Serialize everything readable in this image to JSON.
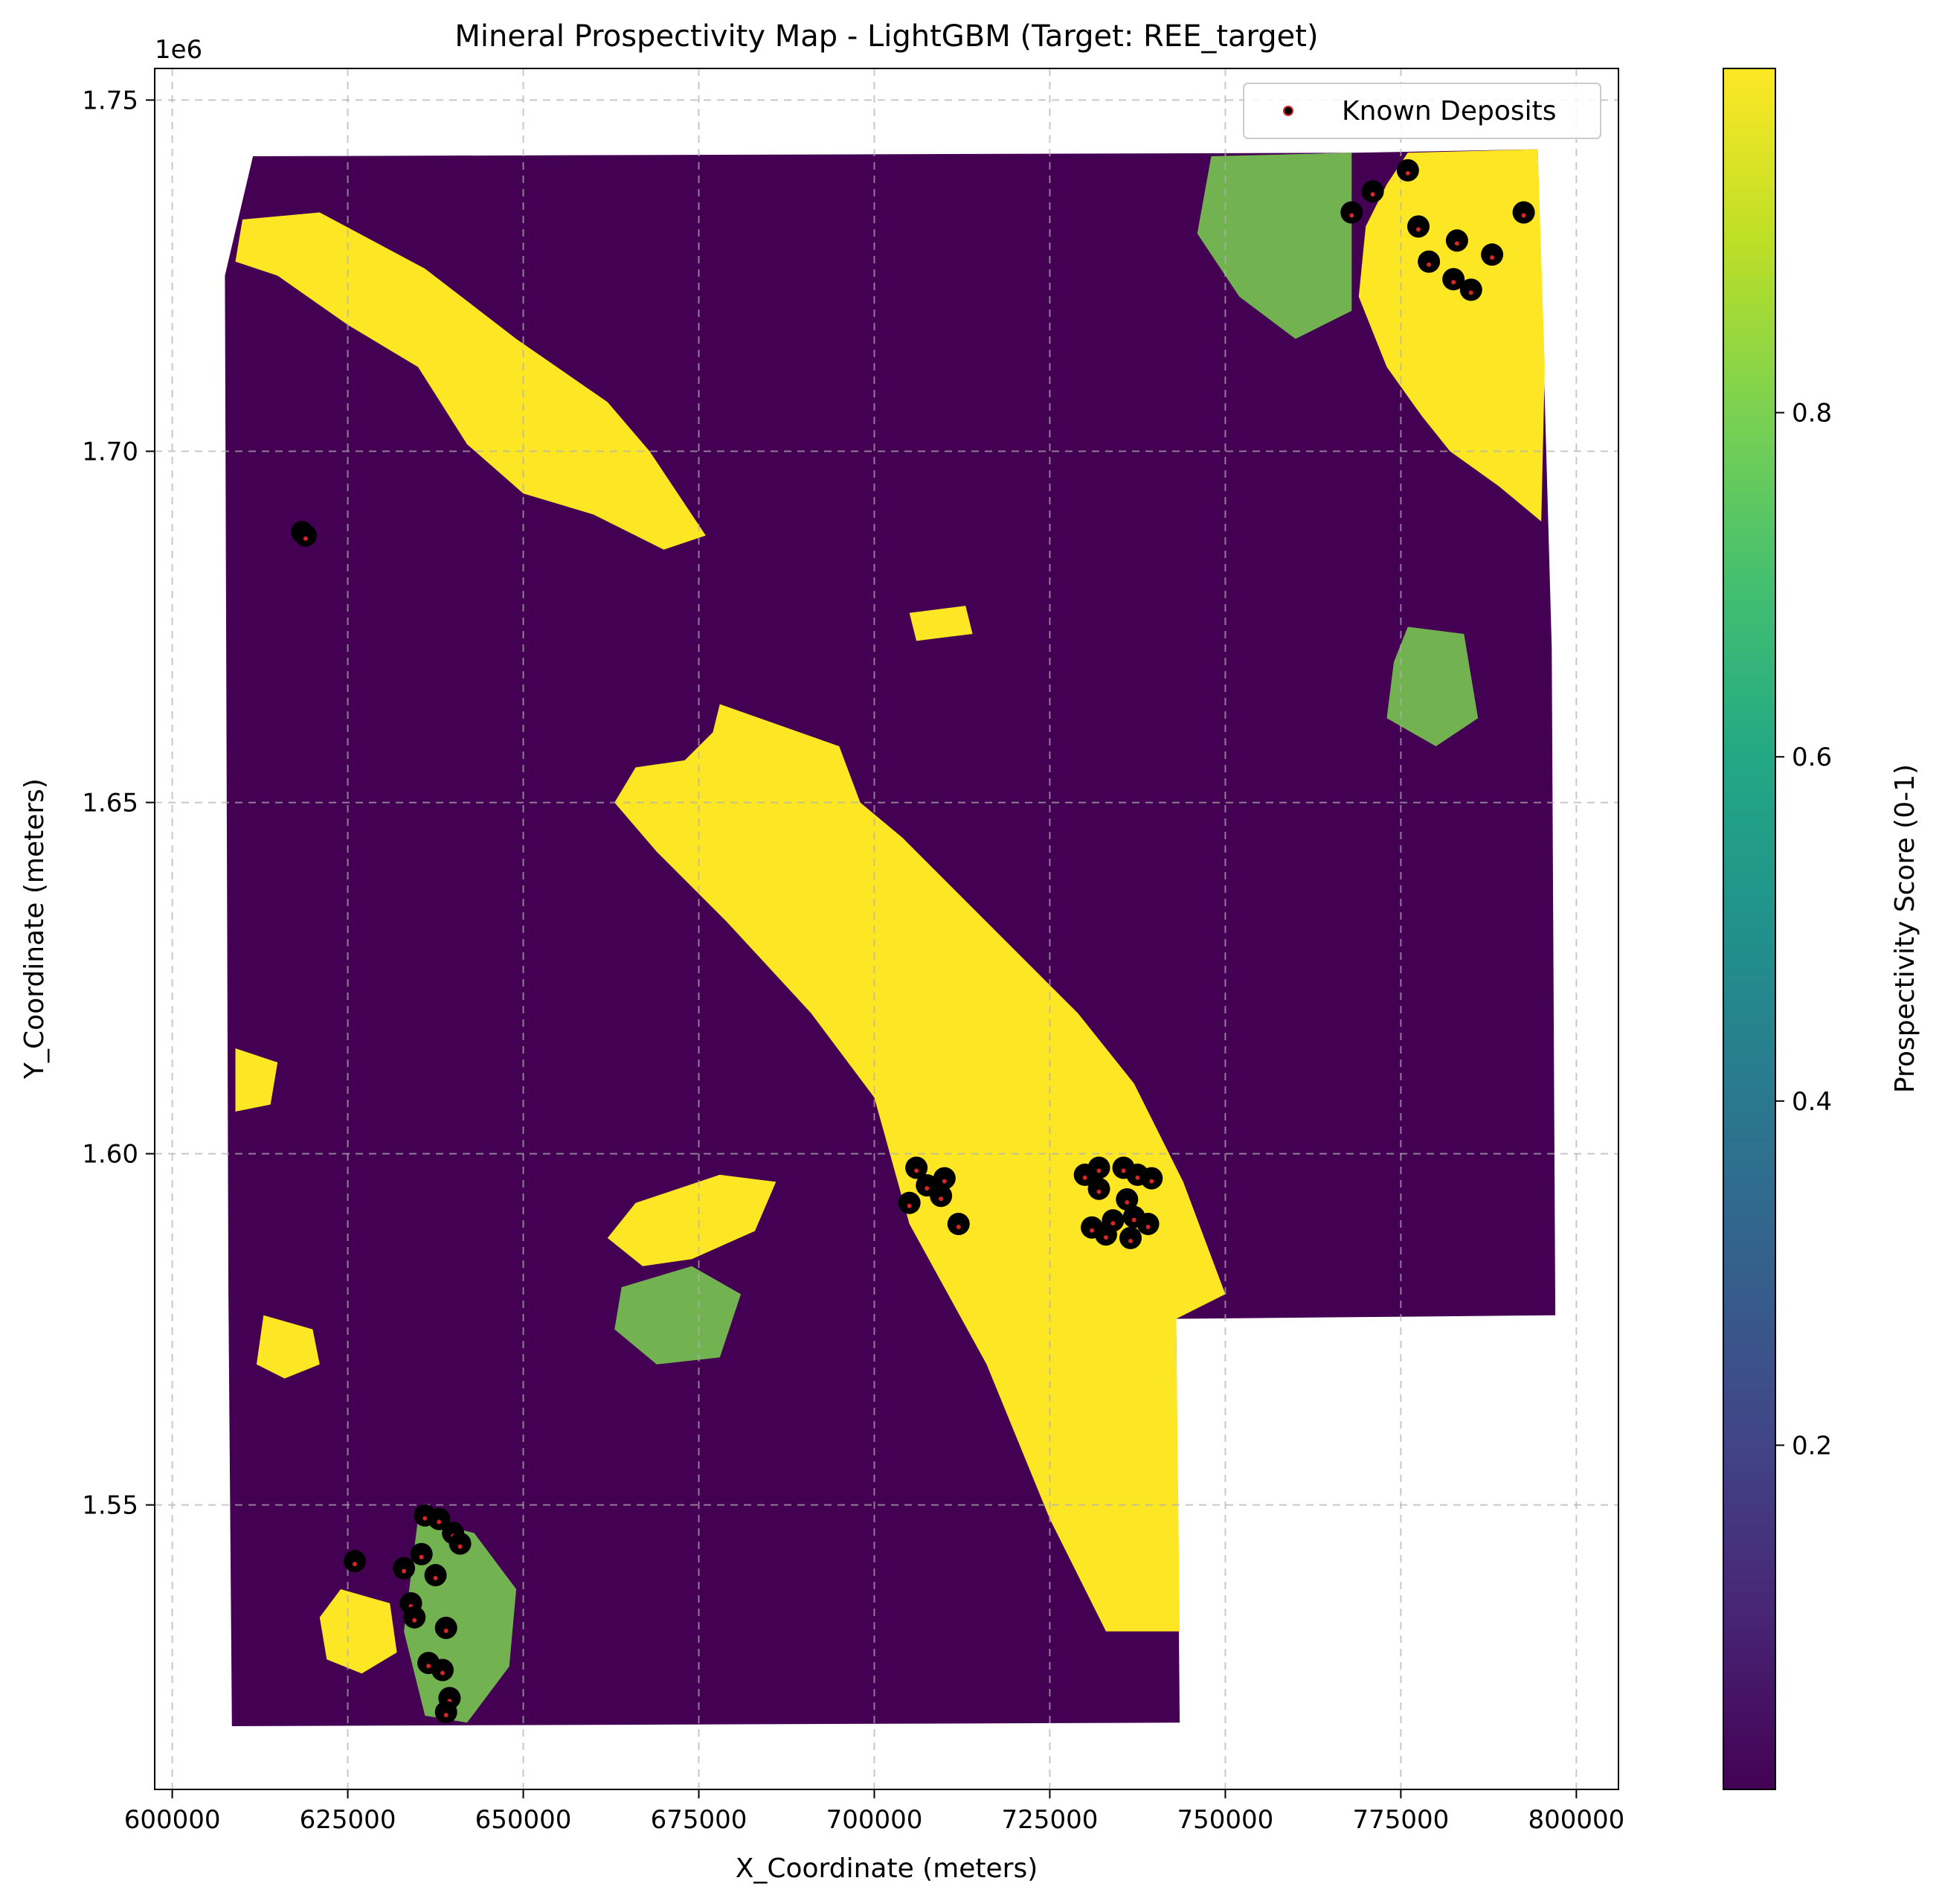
{
  "chart_data": {
    "type": "heatmap",
    "title": "Mineral Prospectivity Map - LightGBM (Target: REE_target)",
    "xlabel": "X_Coordinate (meters)",
    "ylabel": "Y_Coordinate (meters)",
    "y_offset_label": "1e6",
    "xlim": [
      597500,
      806000
    ],
    "ylim": [
      1509500,
      1754500
    ],
    "grid": true,
    "x_ticks": [
      {
        "value": 600000,
        "label": "600000"
      },
      {
        "value": 625000,
        "label": "625000"
      },
      {
        "value": 650000,
        "label": "650000"
      },
      {
        "value": 675000,
        "label": "675000"
      },
      {
        "value": 700000,
        "label": "700000"
      },
      {
        "value": 725000,
        "label": "725000"
      },
      {
        "value": 750000,
        "label": "750000"
      },
      {
        "value": 775000,
        "label": "775000"
      },
      {
        "value": 800000,
        "label": "800000"
      }
    ],
    "y_ticks": [
      {
        "value": 1550000,
        "label": "1.55"
      },
      {
        "value": 1600000,
        "label": "1.60"
      },
      {
        "value": 1650000,
        "label": "1.65"
      },
      {
        "value": 1700000,
        "label": "1.70"
      },
      {
        "value": 1750000,
        "label": "1.75"
      }
    ],
    "colorbar": {
      "label": "Prospectivity Score (0-1)",
      "range": [
        0.0,
        1.0
      ],
      "colormap": [
        "#440154",
        "#482475",
        "#414487",
        "#355f8d",
        "#2a788e",
        "#21918c",
        "#22a884",
        "#44bf70",
        "#7ad151",
        "#bddf26",
        "#fde725"
      ],
      "ticks": [
        {
          "value": 0.2,
          "label": "0.2"
        },
        {
          "value": 0.4,
          "label": "0.4"
        },
        {
          "value": 0.6,
          "label": "0.6"
        },
        {
          "value": 0.8,
          "label": "0.8"
        }
      ]
    },
    "colors": {
      "low": "#440154",
      "high": "#fde725",
      "mid": "#7ad151",
      "deposit": "#000000",
      "deposit_edge": "#d62728"
    },
    "legend": {
      "placement": "top-right",
      "entries": [
        "Known Deposits"
      ]
    },
    "study_area_boundary": [
      [
        611500,
        1742000
      ],
      [
        768500,
        1742500
      ],
      [
        794500,
        1743000
      ],
      [
        796500,
        1672000
      ],
      [
        797000,
        1577000
      ],
      [
        743000,
        1576500
      ],
      [
        743500,
        1519000
      ],
      [
        608500,
        1518500
      ],
      [
        608000,
        1580000
      ],
      [
        607500,
        1725000
      ]
    ],
    "high_zones": [
      {
        "score": 0.98,
        "polygon": [
          [
            610000,
            1733000
          ],
          [
            621000,
            1734000
          ],
          [
            636000,
            1726000
          ],
          [
            649000,
            1716000
          ],
          [
            662000,
            1707000
          ],
          [
            668000,
            1700000
          ],
          [
            676000,
            1688000
          ],
          [
            670000,
            1686000
          ],
          [
            660000,
            1691000
          ],
          [
            650000,
            1694000
          ],
          [
            642000,
            1701000
          ],
          [
            635000,
            1712000
          ],
          [
            625000,
            1718000
          ],
          [
            615000,
            1725000
          ],
          [
            609000,
            1727000
          ]
        ]
      },
      {
        "score": 0.98,
        "polygon": [
          [
            678000,
            1664000
          ],
          [
            695000,
            1658000
          ],
          [
            698000,
            1650000
          ],
          [
            704000,
            1645000
          ],
          [
            716000,
            1633000
          ],
          [
            729000,
            1620000
          ],
          [
            737000,
            1610000
          ],
          [
            744000,
            1596000
          ],
          [
            750000,
            1580000
          ],
          [
            743000,
            1576500
          ],
          [
            743500,
            1532000
          ],
          [
            733000,
            1532000
          ],
          [
            725000,
            1548000
          ],
          [
            716000,
            1570000
          ],
          [
            705000,
            1590000
          ],
          [
            700000,
            1608000
          ],
          [
            691000,
            1620000
          ],
          [
            679000,
            1633000
          ],
          [
            669000,
            1643000
          ],
          [
            663000,
            1650000
          ],
          [
            666000,
            1655000
          ],
          [
            673000,
            1656000
          ],
          [
            677000,
            1660000
          ]
        ]
      },
      {
        "score": 0.98,
        "polygon": [
          [
            776000,
            1742500
          ],
          [
            794500,
            1743000
          ],
          [
            795500,
            1712000
          ],
          [
            795000,
            1690000
          ],
          [
            789000,
            1695000
          ],
          [
            782000,
            1700000
          ],
          [
            778000,
            1705000
          ],
          [
            773000,
            1712000
          ],
          [
            769000,
            1722000
          ],
          [
            770000,
            1732000
          ],
          [
            773000,
            1738000
          ]
        ]
      },
      {
        "score": 0.98,
        "polygon": [
          [
            666000,
            1593000
          ],
          [
            678000,
            1597000
          ],
          [
            686000,
            1596000
          ],
          [
            683000,
            1589000
          ],
          [
            674000,
            1585000
          ],
          [
            667000,
            1584000
          ],
          [
            662000,
            1588000
          ]
        ]
      },
      {
        "score": 0.98,
        "polygon": [
          [
            624000,
            1538000
          ],
          [
            631000,
            1536000
          ],
          [
            632000,
            1529000
          ],
          [
            627000,
            1526000
          ],
          [
            622000,
            1528000
          ],
          [
            621000,
            1534000
          ]
        ]
      },
      {
        "score": 0.98,
        "polygon": [
          [
            613000,
            1577000
          ],
          [
            620000,
            1575000
          ],
          [
            621000,
            1570000
          ],
          [
            616000,
            1568000
          ],
          [
            612000,
            1570000
          ]
        ]
      },
      {
        "score": 0.98,
        "polygon": [
          [
            609000,
            1615000
          ],
          [
            615000,
            1613000
          ],
          [
            614000,
            1607000
          ],
          [
            609000,
            1606000
          ]
        ]
      },
      {
        "score": 0.98,
        "polygon": [
          [
            705000,
            1677000
          ],
          [
            713000,
            1678000
          ],
          [
            714000,
            1674000
          ],
          [
            706000,
            1673000
          ]
        ]
      }
    ],
    "mid_zones": [
      {
        "score": 0.75,
        "polygon": [
          [
            748000,
            1742000
          ],
          [
            768000,
            1742500
          ],
          [
            768000,
            1720000
          ],
          [
            760000,
            1716000
          ],
          [
            752000,
            1722000
          ],
          [
            746000,
            1731000
          ]
        ]
      },
      {
        "score": 0.75,
        "polygon": [
          [
            664000,
            1581000
          ],
          [
            674000,
            1584000
          ],
          [
            681000,
            1580000
          ],
          [
            678000,
            1571000
          ],
          [
            669000,
            1570000
          ],
          [
            663000,
            1575000
          ]
        ]
      },
      {
        "score": 0.72,
        "polygon": [
          [
            635000,
            1548000
          ],
          [
            643000,
            1546000
          ],
          [
            649000,
            1538000
          ],
          [
            648000,
            1527000
          ],
          [
            642000,
            1519000
          ],
          [
            636000,
            1520000
          ],
          [
            633000,
            1532000
          ]
        ]
      },
      {
        "score": 0.7,
        "polygon": [
          [
            776000,
            1675000
          ],
          [
            784000,
            1674000
          ],
          [
            786000,
            1662000
          ],
          [
            780000,
            1658000
          ],
          [
            773000,
            1662000
          ],
          [
            774000,
            1670000
          ]
        ]
      }
    ],
    "deposits": [
      [
        776000,
        1740000
      ],
      [
        771000,
        1737000
      ],
      [
        768000,
        1734000
      ],
      [
        777500,
        1732000
      ],
      [
        779000,
        1727000
      ],
      [
        783000,
        1730000
      ],
      [
        788000,
        1728000
      ],
      [
        792500,
        1734000
      ],
      [
        782500,
        1724500
      ],
      [
        785000,
        1723000
      ],
      [
        618500,
        1688500
      ],
      [
        619000,
        1688000
      ],
      [
        706000,
        1598000
      ],
      [
        707500,
        1595500
      ],
      [
        710000,
        1596500
      ],
      [
        709500,
        1594000
      ],
      [
        705000,
        1593000
      ],
      [
        712000,
        1590000
      ],
      [
        730000,
        1597000
      ],
      [
        732000,
        1598000
      ],
      [
        735500,
        1598000
      ],
      [
        737500,
        1597000
      ],
      [
        739500,
        1596500
      ],
      [
        732000,
        1595000
      ],
      [
        736000,
        1593500
      ],
      [
        737000,
        1591000
      ],
      [
        739000,
        1590000
      ],
      [
        734000,
        1590500
      ],
      [
        731000,
        1589500
      ],
      [
        733000,
        1588500
      ],
      [
        736500,
        1588000
      ],
      [
        626000,
        1542000
      ],
      [
        633000,
        1541000
      ],
      [
        636000,
        1548500
      ],
      [
        638000,
        1548000
      ],
      [
        640000,
        1546000
      ],
      [
        641000,
        1544500
      ],
      [
        637500,
        1540000
      ],
      [
        635500,
        1543000
      ],
      [
        634000,
        1536000
      ],
      [
        634500,
        1534000
      ],
      [
        639000,
        1532500
      ],
      [
        636500,
        1527500
      ],
      [
        638500,
        1526500
      ],
      [
        639500,
        1522500
      ],
      [
        639000,
        1520500
      ]
    ]
  }
}
